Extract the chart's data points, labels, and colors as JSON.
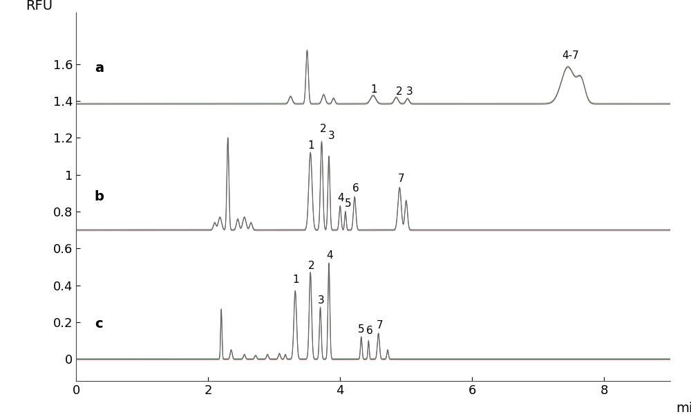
{
  "xlabel": "min",
  "ylabel": "RFU",
  "xlim": [
    0,
    9.0
  ],
  "ylim": [
    -0.12,
    1.88
  ],
  "background_color": "#ffffff",
  "trace_a_baseline": 1.385,
  "trace_b_baseline": 0.7,
  "trace_c_baseline": 0.0,
  "label_a": "a",
  "label_b": "b",
  "label_c": "c",
  "tick_fontsize": 13,
  "label_fontsize": 14,
  "yticks": [
    0,
    0.2,
    0.4,
    0.6,
    0.8,
    1.0,
    1.2,
    1.4,
    1.6
  ],
  "ytick_labels": [
    "0",
    "0.2",
    "0.4",
    "0.6",
    "0.8",
    "1",
    "1.2",
    "1.4",
    "1.6"
  ],
  "xticks": [
    0,
    2,
    4,
    6,
    8
  ],
  "xtick_labels": [
    "0",
    "2",
    "4",
    "6",
    "8"
  ]
}
